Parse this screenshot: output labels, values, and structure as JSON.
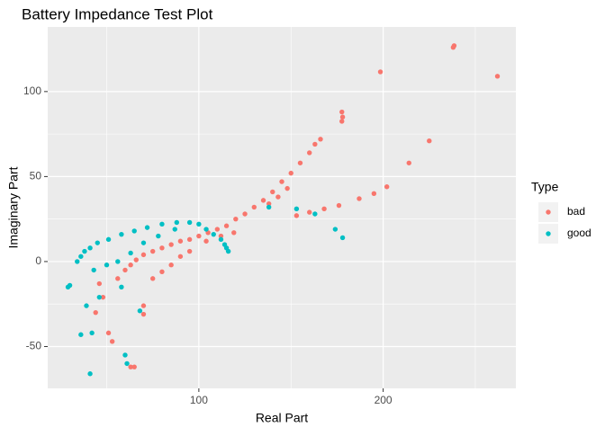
{
  "chart_data": {
    "type": "scatter",
    "title": "Battery Impedance Test Plot",
    "x_label": "Real Part",
    "y_label": "Imaginary Part",
    "legend_title": "Type",
    "legend_position": "right",
    "xlim": [
      18,
      272
    ],
    "ylim": [
      -74.6,
      138
    ],
    "xticks": [
      100,
      200
    ],
    "yticks": [
      -50,
      0,
      50,
      100
    ],
    "x_minor_grid": [
      50,
      150,
      250
    ],
    "y_minor_grid": [
      -25,
      25,
      75
    ],
    "grid": true,
    "series": [
      {
        "name": "bad",
        "color": "#F8766D",
        "x": [
          262,
          238.5,
          238,
          198.5,
          177.6,
          177.6,
          178,
          60,
          63,
          66,
          70,
          75,
          80,
          85,
          90,
          95,
          100,
          105,
          110,
          115,
          120,
          125,
          130,
          135,
          140,
          145,
          150,
          155,
          160,
          163,
          166,
          153,
          160,
          168,
          176,
          187,
          195,
          202,
          214,
          225,
          148,
          143,
          138,
          48,
          51,
          53,
          63,
          65,
          70,
          70,
          46,
          56,
          44,
          75,
          80,
          85,
          90,
          95,
          104,
          112,
          119
        ],
        "values": [
          109,
          127,
          126,
          111.6,
          88,
          82.5,
          85,
          -5,
          -2,
          1,
          4,
          6,
          8,
          10,
          12,
          13,
          15,
          17,
          19,
          21,
          25,
          28,
          32,
          36,
          41,
          47,
          52,
          58,
          64,
          69,
          72,
          27,
          29,
          31,
          33,
          37,
          40,
          44,
          58,
          71,
          43,
          38,
          34,
          -21,
          -42,
          -47,
          -62,
          -62,
          -26,
          -31,
          -13,
          -10,
          -30,
          -10,
          -6,
          -2,
          3,
          6,
          12,
          15,
          17
        ]
      },
      {
        "name": "good",
        "color": "#00BFC4",
        "x": [
          34,
          36,
          38,
          41,
          45,
          51,
          58,
          65,
          72,
          80,
          88,
          95,
          100,
          104,
          108,
          112,
          114,
          115,
          116,
          43,
          50,
          56,
          63,
          70,
          78,
          87,
          41,
          42,
          36,
          30,
          60,
          61,
          68,
          58,
          39,
          46,
          29,
          138,
          153,
          163,
          174,
          178
        ],
        "values": [
          0,
          3,
          6,
          8,
          11,
          13,
          16,
          18,
          20,
          22,
          23,
          23,
          22,
          19,
          16,
          13,
          10,
          8,
          6,
          -5,
          -2,
          0,
          5,
          11,
          15,
          19,
          -66,
          -42,
          -43,
          -14,
          -55,
          -60,
          -29,
          -15,
          -26,
          -21,
          -15,
          32,
          31,
          28,
          19,
          14
        ]
      }
    ]
  }
}
